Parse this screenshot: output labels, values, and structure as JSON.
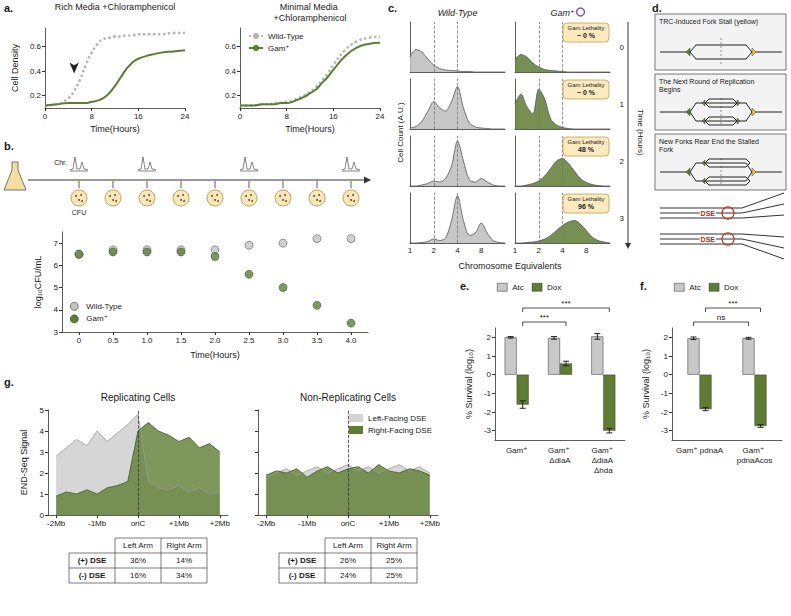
{
  "chart_data": [
    {
      "panel": "a.",
      "type": "line",
      "title": "Rich Media +Chloramphenicol",
      "xlabel": "Time(Hours)",
      "ylabel": "Cell Density",
      "x": [
        0,
        2,
        4,
        5,
        6,
        7,
        8,
        9,
        10,
        11,
        12,
        13,
        14,
        15,
        16,
        18,
        20,
        22,
        24
      ],
      "series": [
        {
          "name": "Wild-Type",
          "color": "#b5b5b5",
          "line_style": "dotted",
          "values": [
            0.12,
            0.13,
            0.18,
            0.24,
            0.33,
            0.45,
            0.55,
            0.62,
            0.66,
            0.67,
            0.68,
            0.68,
            0.69,
            0.69,
            0.7,
            0.7,
            0.7,
            0.71,
            0.71
          ]
        },
        {
          "name": "Gam⁺",
          "color": "#5e7d32",
          "line_style": "solid",
          "values": [
            0.12,
            0.13,
            0.14,
            0.14,
            0.14,
            0.14,
            0.15,
            0.16,
            0.18,
            0.22,
            0.28,
            0.35,
            0.42,
            0.47,
            0.5,
            0.53,
            0.55,
            0.56,
            0.57
          ]
        }
      ],
      "xlim": [
        0,
        24
      ],
      "xticks": [
        0,
        8,
        16,
        24
      ],
      "ylim": [
        0.1,
        0.75
      ],
      "yticks": [
        0.2,
        0.4,
        0.6
      ],
      "grid": false,
      "arrow": [
        5,
        0.3
      ]
    },
    {
      "type": "line",
      "title": "Minimal Media +Chloramphenicol",
      "xlabel": "Time(Hours)",
      "x": [
        0,
        2,
        4,
        5,
        6,
        7,
        8,
        9,
        10,
        11,
        12,
        13,
        14,
        15,
        16,
        18,
        20,
        22,
        24
      ],
      "series": [
        {
          "name": "Wild-Type",
          "color": "#b5b5b5",
          "line_style": "dotted",
          "values": [
            0.12,
            0.12,
            0.13,
            0.13,
            0.14,
            0.14,
            0.15,
            0.16,
            0.18,
            0.2,
            0.23,
            0.27,
            0.32,
            0.38,
            0.45,
            0.57,
            0.64,
            0.67,
            0.68
          ]
        },
        {
          "name": "Gam⁺",
          "color": "#5e7d32",
          "line_style": "solid",
          "values": [
            0.12,
            0.12,
            0.13,
            0.13,
            0.13,
            0.14,
            0.14,
            0.15,
            0.17,
            0.19,
            0.22,
            0.25,
            0.3,
            0.35,
            0.41,
            0.52,
            0.59,
            0.62,
            0.63
          ]
        }
      ],
      "xlim": [
        0,
        24
      ],
      "xticks": [
        0,
        8,
        16,
        24
      ],
      "ylim": [
        0.1,
        0.75
      ],
      "yticks": [
        0.2,
        0.4,
        0.6
      ],
      "grid": false,
      "legend": "upper left"
    },
    {
      "panel": "b.",
      "type": "scatter",
      "timeline_labels": [
        "Chr.",
        "CFU"
      ],
      "xlabel": "Time(Hours)",
      "ylabel": "log₁₀CFU/mL",
      "x": [
        0,
        0.5,
        1,
        1.5,
        2,
        2.5,
        3,
        3.5,
        4
      ],
      "series": [
        {
          "name": "Wild-Type",
          "color": "#c4c4c4",
          "marker": "circle",
          "values": [
            6.5,
            6.7,
            6.7,
            6.7,
            6.7,
            6.9,
            7.0,
            7.2,
            7.2
          ]
        },
        {
          "name": "Gam⁺",
          "color": "#5e7d32",
          "marker": "circle",
          "values": [
            6.5,
            6.6,
            6.6,
            6.6,
            6.4,
            5.6,
            5.0,
            4.2,
            3.4
          ]
        }
      ],
      "xlim": [
        -0.25,
        4.25
      ],
      "xticks": [
        0,
        0.5,
        {
          "value": 1,
          "label": "1.0"
        },
        1.5,
        {
          "value": 2,
          "label": "2.0"
        },
        2.5,
        {
          "value": 3,
          "label": "3.0"
        },
        3.5,
        {
          "value": 4,
          "label": "4.0"
        }
      ],
      "ylim": [
        3,
        7.5
      ],
      "yticks": [
        3,
        4,
        5,
        6,
        7
      ],
      "grid": false,
      "legend": "lower left"
    },
    {
      "panel": "c.",
      "type": "area",
      "xlabel": "Chromosome Equivalents",
      "ylabel": "Cell Count (A.U.)",
      "time_label": "Time (Hours)",
      "times": [
        0,
        1,
        2,
        3
      ],
      "lethality_title": "Gam Lethality",
      "lethality": [
        "~ 0 %",
        "~ 0 %",
        "48 %",
        "96 %"
      ],
      "x": [
        1,
        1.19,
        1.41,
        1.68,
        2,
        2.38,
        2.83,
        3.36,
        4,
        4.76,
        5.66,
        6.73,
        8,
        9.51,
        11.31,
        13.45,
        16
      ],
      "series": [
        {
          "name": "Wild-Type",
          "color": "#bdbdbd",
          "values": [
            [
              0.3,
              0.45,
              0.4,
              0.26,
              0.14,
              0.07,
              0.04,
              0.03,
              0.02,
              0.01,
              0.01,
              0,
              0,
              0,
              0,
              0,
              0
            ],
            [
              0.02,
              0.05,
              0.15,
              0.35,
              0.55,
              0.42,
              0.36,
              0.55,
              0.85,
              0.42,
              0.12,
              0.04,
              0.02,
              0.01,
              0,
              0,
              0
            ],
            [
              0,
              0,
              0.02,
              0.05,
              0.1,
              0.08,
              0.15,
              0.4,
              0.9,
              0.5,
              0.12,
              0.08,
              0.15,
              0.08,
              0.02,
              0,
              0
            ],
            [
              0,
              0,
              0.01,
              0.03,
              0.08,
              0.05,
              0.1,
              0.45,
              0.95,
              0.45,
              0.15,
              0.2,
              0.4,
              0.2,
              0.05,
              0.01,
              0
            ]
          ]
        },
        {
          "name": "Gam⁺",
          "color": "#5e7d32",
          "values": [
            [
              0.25,
              0.35,
              0.3,
              0.18,
              0.1,
              0.05,
              0.03,
              0.02,
              0.01,
              0,
              0,
              0,
              0,
              0,
              0,
              0,
              0
            ],
            [
              0.5,
              0.7,
              0.45,
              0.3,
              0.8,
              0.6,
              0.2,
              0.08,
              0.03,
              0.01,
              0,
              0,
              0,
              0,
              0,
              0,
              0
            ],
            [
              0,
              0,
              0.02,
              0.05,
              0.1,
              0.2,
              0.35,
              0.5,
              0.55,
              0.45,
              0.3,
              0.15,
              0.07,
              0.03,
              0.01,
              0,
              0
            ],
            [
              0,
              0,
              0.01,
              0.02,
              0.04,
              0.08,
              0.15,
              0.25,
              0.35,
              0.42,
              0.45,
              0.38,
              0.25,
              0.12,
              0.05,
              0.02,
              0
            ]
          ]
        }
      ],
      "log": "x",
      "xlim": [
        1,
        16
      ],
      "xticks": [
        1,
        2,
        4,
        8
      ],
      "ylim": [
        0,
        1
      ],
      "tick_labels": "x",
      "guides": [
        2,
        4
      ]
    },
    {
      "panel": "e.",
      "type": "bar",
      "categories": [
        "Gam⁺",
        "Gam⁺ ΔdiaA",
        "Gam⁺ ΔdiaA Δhda"
      ],
      "ylabel": "% Survival (log₁₀)",
      "series": [
        {
          "name": "Atc",
          "color": "#c8c8c8",
          "values": [
            2.0,
            1.97,
            2.05
          ],
          "errors": [
            0.04,
            0.07,
            0.15
          ]
        },
        {
          "name": "Dox",
          "color": "#5e7d32",
          "values": [
            -1.6,
            0.6,
            -3.0
          ],
          "errors": [
            0.2,
            0.12,
            0.12
          ]
        }
      ],
      "ylim": [
        -3.5,
        2.5
      ],
      "yticks": [
        -3,
        -2,
        -1,
        0,
        1,
        2
      ],
      "legend": "top",
      "significance": [
        {
          "from": 0,
          "to": 1,
          "series": "Dox",
          "label": "***"
        },
        {
          "from": 0,
          "to": 2,
          "series": "Dox",
          "label": "***"
        }
      ]
    },
    {
      "panel": "f.",
      "type": "bar",
      "categories": [
        "Gam⁺ pdnaA",
        "Gam⁺ pdnaAcos"
      ],
      "ylabel": "% Survival (log₁₀)",
      "series": [
        {
          "name": "Atc",
          "color": "#c8c8c8",
          "values": [
            1.95,
            1.95
          ],
          "errors": [
            0.07,
            0.05
          ]
        },
        {
          "name": "Dox",
          "color": "#5e7d32",
          "values": [
            -1.85,
            -2.75
          ],
          "errors": [
            0.08,
            0.07
          ]
        }
      ],
      "ylim": [
        -3.5,
        2.5
      ],
      "yticks": [
        -3,
        -2,
        -1,
        0,
        1,
        2
      ],
      "legend": "top",
      "significance": [
        {
          "from": 0,
          "to": 1,
          "series": "Atc",
          "label": "ns"
        },
        {
          "from": 0,
          "to": 1,
          "series": "Dox",
          "label": "***"
        }
      ]
    },
    {
      "panel": "g.",
      "type": "area",
      "title": "Replicating Cells",
      "ylabel": "END-Seq Signal",
      "x": [
        -2,
        -1.75,
        -1.5,
        -1.25,
        -1,
        -0.75,
        -0.5,
        -0.25,
        0,
        0.25,
        0.5,
        0.75,
        1,
        1.25,
        1.5,
        1.75,
        2
      ],
      "series": [
        {
          "name": "Left-Facing DSE",
          "color": "#d4d4d4",
          "values": [
            2.8,
            3.2,
            3.6,
            3.3,
            4.0,
            3.5,
            3.9,
            4.3,
            4.8,
            1.6,
            1.3,
            1.2,
            1.4,
            1.1,
            1.3,
            1.0,
            1.1
          ]
        },
        {
          "name": "Right-Facing DSE",
          "color": "#5e7d32",
          "values": [
            0.9,
            1.1,
            1.0,
            1.2,
            1.0,
            1.3,
            1.4,
            1.6,
            4.0,
            4.4,
            4.0,
            3.8,
            3.5,
            3.7,
            3.2,
            3.4,
            3.0
          ]
        }
      ],
      "xlim": [
        -2.2,
        2.2
      ],
      "xticks": [
        {
          "value": -2,
          "label": "-2Mb"
        },
        {
          "value": -1,
          "label": "-1Mb"
        },
        {
          "value": 0,
          "label": "oriC"
        },
        {
          "value": 1,
          "label": "+1Mb"
        },
        {
          "value": 2,
          "label": "+2Mb"
        }
      ],
      "ylim": [
        0,
        5
      ],
      "yticks": [
        0,
        1,
        2,
        3,
        4,
        5
      ],
      "guides": [
        0
      ],
      "table": {
        "columns": [
          "Left Arm",
          "Right Arm"
        ],
        "rows": [
          [
            "(+) DSE",
            "36%",
            "14%"
          ],
          [
            "(-) DSE",
            "16%",
            "34%"
          ]
        ]
      }
    },
    {
      "type": "area",
      "title": "Non-Replicating Cells",
      "x": [
        -2,
        -1.75,
        -1.5,
        -1.25,
        -1,
        -0.75,
        -0.5,
        -0.25,
        0,
        0.25,
        0.5,
        0.75,
        1,
        1.25,
        1.5,
        1.75,
        2
      ],
      "series": [
        {
          "name": "Left-Facing DSE",
          "color": "#d4d4d4",
          "values": [
            1.8,
            2.0,
            2.2,
            1.9,
            2.1,
            2.3,
            2.0,
            2.2,
            2.4,
            2.1,
            2.3,
            2.0,
            2.2,
            2.4,
            2.1,
            2.3,
            2.0
          ]
        },
        {
          "name": "Right-Facing DSE",
          "color": "#5e7d32",
          "values": [
            1.9,
            2.1,
            2.0,
            2.2,
            1.8,
            2.1,
            2.3,
            2.0,
            2.2,
            2.3,
            2.0,
            2.4,
            2.1,
            2.0,
            2.2,
            2.1,
            1.9
          ]
        }
      ],
      "xlim": [
        -2.2,
        2.2
      ],
      "xticks": [
        {
          "value": -2,
          "label": "-2Mb"
        },
        {
          "value": -1,
          "label": "-1Mb"
        },
        {
          "value": 0,
          "label": "oriC"
        },
        {
          "value": 1,
          "label": "+1Mb"
        },
        {
          "value": 2,
          "label": "+2Mb"
        }
      ],
      "ylim": [
        0,
        5
      ],
      "yticks": [
        0,
        1,
        2,
        3,
        4,
        5
      ],
      "guides": [
        0
      ],
      "tick_labels": "x",
      "legend": "upper right",
      "table": {
        "columns": [
          "Left Arm",
          "Right Arm"
        ],
        "rows": [
          [
            "(+) DSE",
            "26%",
            "25%"
          ],
          [
            "(-) DSE",
            "24%",
            "25%"
          ]
        ]
      }
    }
  ],
  "diagram": {
    "panel": "d.",
    "steps": [
      "TRC-Induced Fork Stall (yellow)",
      "The Next Round of Replication Begins",
      "New Forks Rear End the Stalled Fork"
    ],
    "break_labels": [
      "DSE",
      "DSE"
    ]
  }
}
